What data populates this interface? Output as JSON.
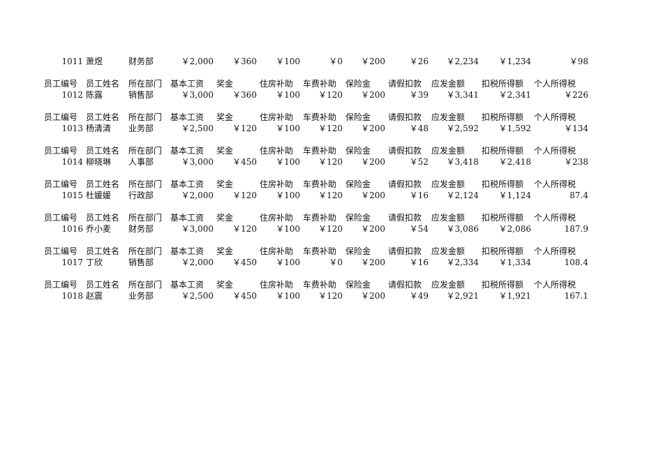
{
  "headers": [
    "员工编号",
    "员工姓名",
    "所在部门",
    "基本工资",
    "奖金",
    "住房补助",
    "车费补助",
    "保险金",
    "请假扣款",
    "应发金额",
    "扣税所得额",
    "个人所得税"
  ],
  "records": [
    {
      "show_header": false,
      "cells": [
        "1011",
        "萧煜",
        "财务部",
        "￥2,000",
        "￥360",
        "￥100",
        "￥0",
        "￥200",
        "￥26",
        "￥2,234",
        "￥1,234",
        "￥98"
      ]
    },
    {
      "show_header": true,
      "cells": [
        "1012",
        "陈露",
        "销售部",
        "￥3,000",
        "￥360",
        "￥100",
        "￥120",
        "￥200",
        "￥39",
        "￥3,341",
        "￥2,341",
        "￥226"
      ]
    },
    {
      "show_header": true,
      "cells": [
        "1013",
        "杨清清",
        "业务部",
        "￥2,500",
        "￥120",
        "￥100",
        "￥120",
        "￥200",
        "￥48",
        "￥2,592",
        "￥1,592",
        "￥134"
      ]
    },
    {
      "show_header": true,
      "cells": [
        "1014",
        "柳晓琳",
        "人事部",
        "￥3,000",
        "￥450",
        "￥100",
        "￥120",
        "￥200",
        "￥52",
        "￥3,418",
        "￥2,418",
        "￥238"
      ]
    },
    {
      "show_header": true,
      "cells": [
        "1015",
        "杜媛媛",
        "行政部",
        "￥2,000",
        "￥120",
        "￥100",
        "￥120",
        "￥200",
        "￥16",
        "￥2,124",
        "￥1,124",
        "87.4"
      ]
    },
    {
      "show_header": true,
      "cells": [
        "1016",
        "乔小麦",
        "财务部",
        "￥3,000",
        "￥120",
        "￥100",
        "￥120",
        "￥200",
        "￥54",
        "￥3,086",
        "￥2,086",
        "187.9"
      ]
    },
    {
      "show_header": true,
      "cells": [
        "1017",
        "丁欣",
        "销售部",
        "￥2,000",
        "￥450",
        "￥100",
        "￥0",
        "￥200",
        "￥16",
        "￥2,334",
        "￥1,334",
        "108.4"
      ]
    },
    {
      "show_header": true,
      "cells": [
        "1018",
        "赵震",
        "业务部",
        "￥2,500",
        "￥450",
        "￥100",
        "￥120",
        "￥200",
        "￥49",
        "￥2,921",
        "￥1,921",
        "167.1"
      ]
    }
  ]
}
